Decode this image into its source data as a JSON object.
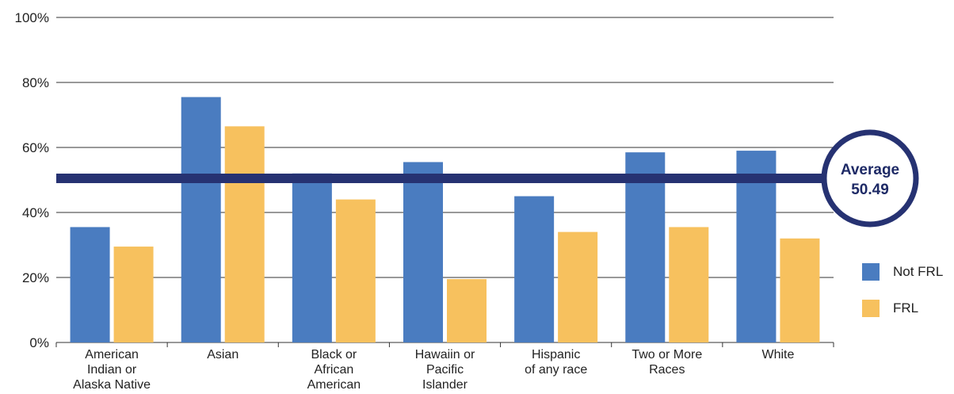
{
  "chart_data": {
    "type": "bar",
    "categories": [
      [
        "American",
        "Indian or",
        "Alaska Native"
      ],
      [
        "Asian"
      ],
      [
        "Black or",
        "African",
        "American"
      ],
      [
        "Hawaiin or",
        "Pacific",
        "Islander"
      ],
      [
        "Hispanic",
        "of any race"
      ],
      [
        "Two or More",
        "Races"
      ],
      [
        "White"
      ]
    ],
    "series": [
      {
        "name": "Not FRL",
        "color": "#4a7cc0",
        "values": [
          35.5,
          75.5,
          52,
          55.5,
          45,
          58.5,
          59
        ]
      },
      {
        "name": "FRL",
        "color": "#f7c15e",
        "values": [
          29.5,
          66.5,
          44,
          19.5,
          34,
          35.5,
          32
        ]
      }
    ],
    "y_ticks": [
      "0%",
      "20%",
      "40%",
      "60%",
      "80%",
      "100%"
    ],
    "ylim": [
      0,
      100
    ],
    "grid": true,
    "legend_position": "right",
    "average": {
      "label": "Average",
      "value": 50.49,
      "value_text": "50.49",
      "line_color": "#263272"
    }
  }
}
